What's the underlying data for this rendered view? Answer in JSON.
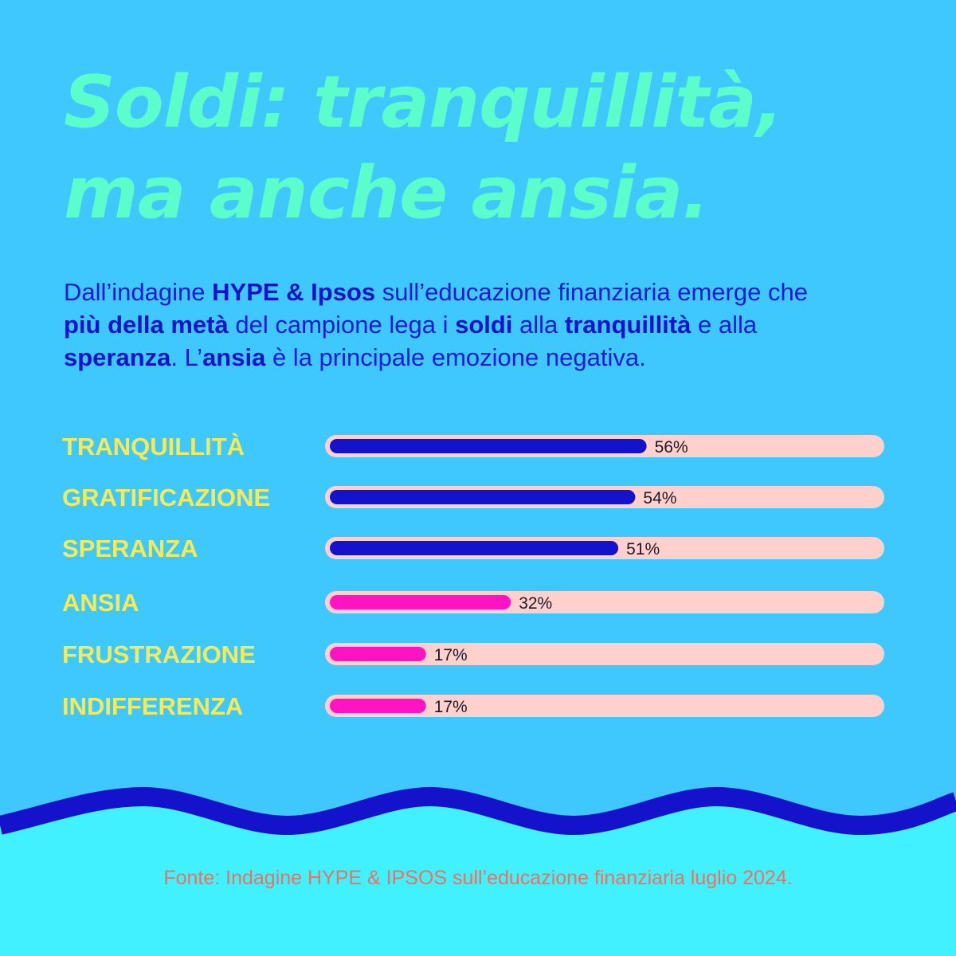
{
  "headline": {
    "line1": "Soldi: tranquillità,",
    "line2": "ma anche ansia."
  },
  "intro": {
    "p1": "Dall’indagine ",
    "b1": "HYPE & Ipsos",
    "p2": " sull’educazione finanziaria emerge che",
    "b2": "più della metà",
    "p3": " del campione lega i ",
    "b3": "soldi",
    "p4": " alla ",
    "b4": "tranquillità",
    "p5": " e alla",
    "b5": "speranza",
    "p6": ". L’",
    "b6": "ansia",
    "p7": " è la principale emozione negativa."
  },
  "colors": {
    "background": "#3ec8fe",
    "title": "#5cfdcb",
    "label": "#f7ea52",
    "track": "#ffd0cc",
    "positive_bar": "#1512cc",
    "negative_bar": "#ff13c2",
    "wave": "#1512cc",
    "bottom": "#41f1ff",
    "source": "#f0705a"
  },
  "chart_data": {
    "type": "bar",
    "orientation": "horizontal",
    "categories": [
      "TRANQUILLITÀ",
      "GRATIFICAZIONE",
      "SPERANZA",
      "ANSIA",
      "FRUSTRAZIONE",
      "INDIFFERENZA"
    ],
    "values": [
      56,
      54,
      51,
      32,
      17,
      17
    ],
    "value_labels": [
      "56%",
      "54%",
      "51%",
      "32%",
      "17%",
      "17%"
    ],
    "sentiment": [
      "positive",
      "positive",
      "positive",
      "negative",
      "negative",
      "negative"
    ],
    "xlim": [
      0,
      100
    ],
    "unit": "%",
    "grid": false
  },
  "source": "Fonte: Indagine HYPE & IPSOS sull’educazione finanziaria luglio 2024."
}
